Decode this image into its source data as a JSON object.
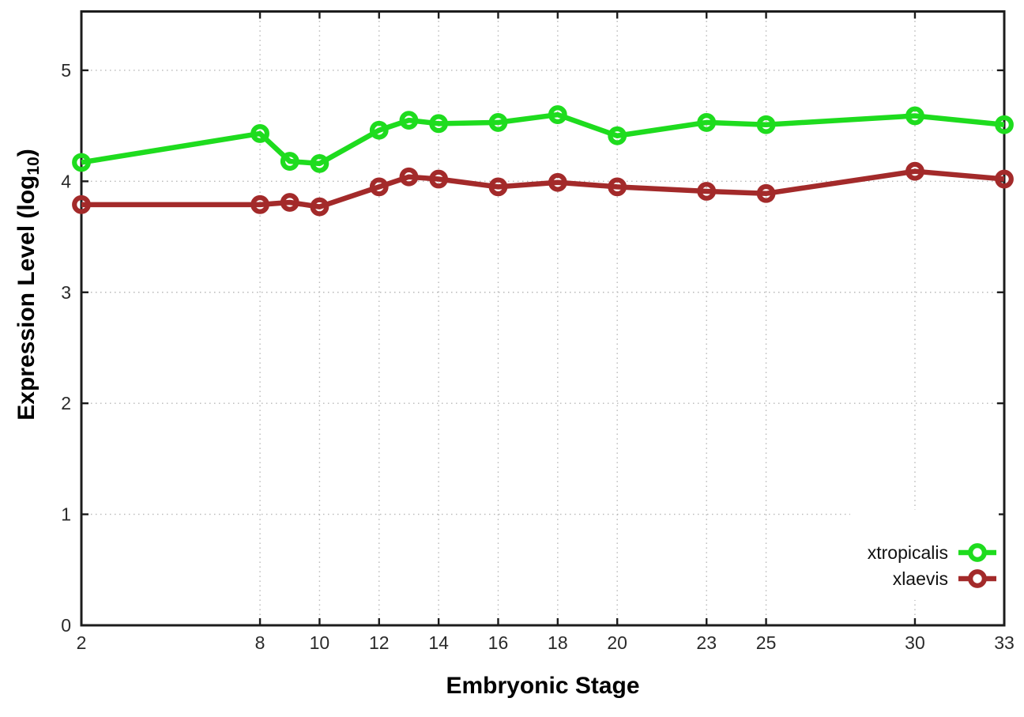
{
  "chart_data": {
    "type": "line",
    "title": "",
    "xlabel": "Embryonic Stage",
    "ylabel": {
      "prefix": "Expression Level (log",
      "sub": "10",
      "suffix": ")"
    },
    "x": [
      2,
      8,
      9,
      10,
      12,
      13,
      14,
      16,
      18,
      20,
      23,
      25,
      30,
      33
    ],
    "series": [
      {
        "name": "xtropicalis",
        "color": "#1edc1e",
        "values": [
          4.17,
          4.43,
          4.18,
          4.16,
          4.46,
          4.55,
          4.52,
          4.53,
          4.6,
          4.41,
          4.53,
          4.51,
          4.59,
          4.51
        ]
      },
      {
        "name": "xlaevis",
        "color": "#a32a2a",
        "values": [
          3.79,
          3.79,
          3.81,
          3.77,
          3.95,
          4.04,
          4.02,
          3.95,
          3.99,
          3.95,
          3.91,
          3.89,
          4.09,
          4.02
        ]
      }
    ],
    "xticks": [
      "2",
      "8",
      "10",
      "12",
      "14",
      "16",
      "18",
      "20",
      "23",
      "25",
      "30",
      "33"
    ],
    "xtick_values": [
      2,
      8,
      10,
      12,
      14,
      16,
      18,
      20,
      23,
      25,
      30,
      33
    ],
    "yticks": [
      "0",
      "1",
      "2",
      "3",
      "4",
      "5"
    ],
    "ytick_values": [
      0,
      1,
      2,
      3,
      4,
      5
    ],
    "xlim": [
      2,
      33
    ],
    "ylim": [
      0,
      5.53
    ],
    "grid": true,
    "legend_position": "inside-bottom-right",
    "marker": "open-circle",
    "colors": {
      "axis": "#1c1c1c",
      "grid": "#b8b8b8",
      "tick_label": "#2a2a2a",
      "background": "#ffffff"
    }
  }
}
